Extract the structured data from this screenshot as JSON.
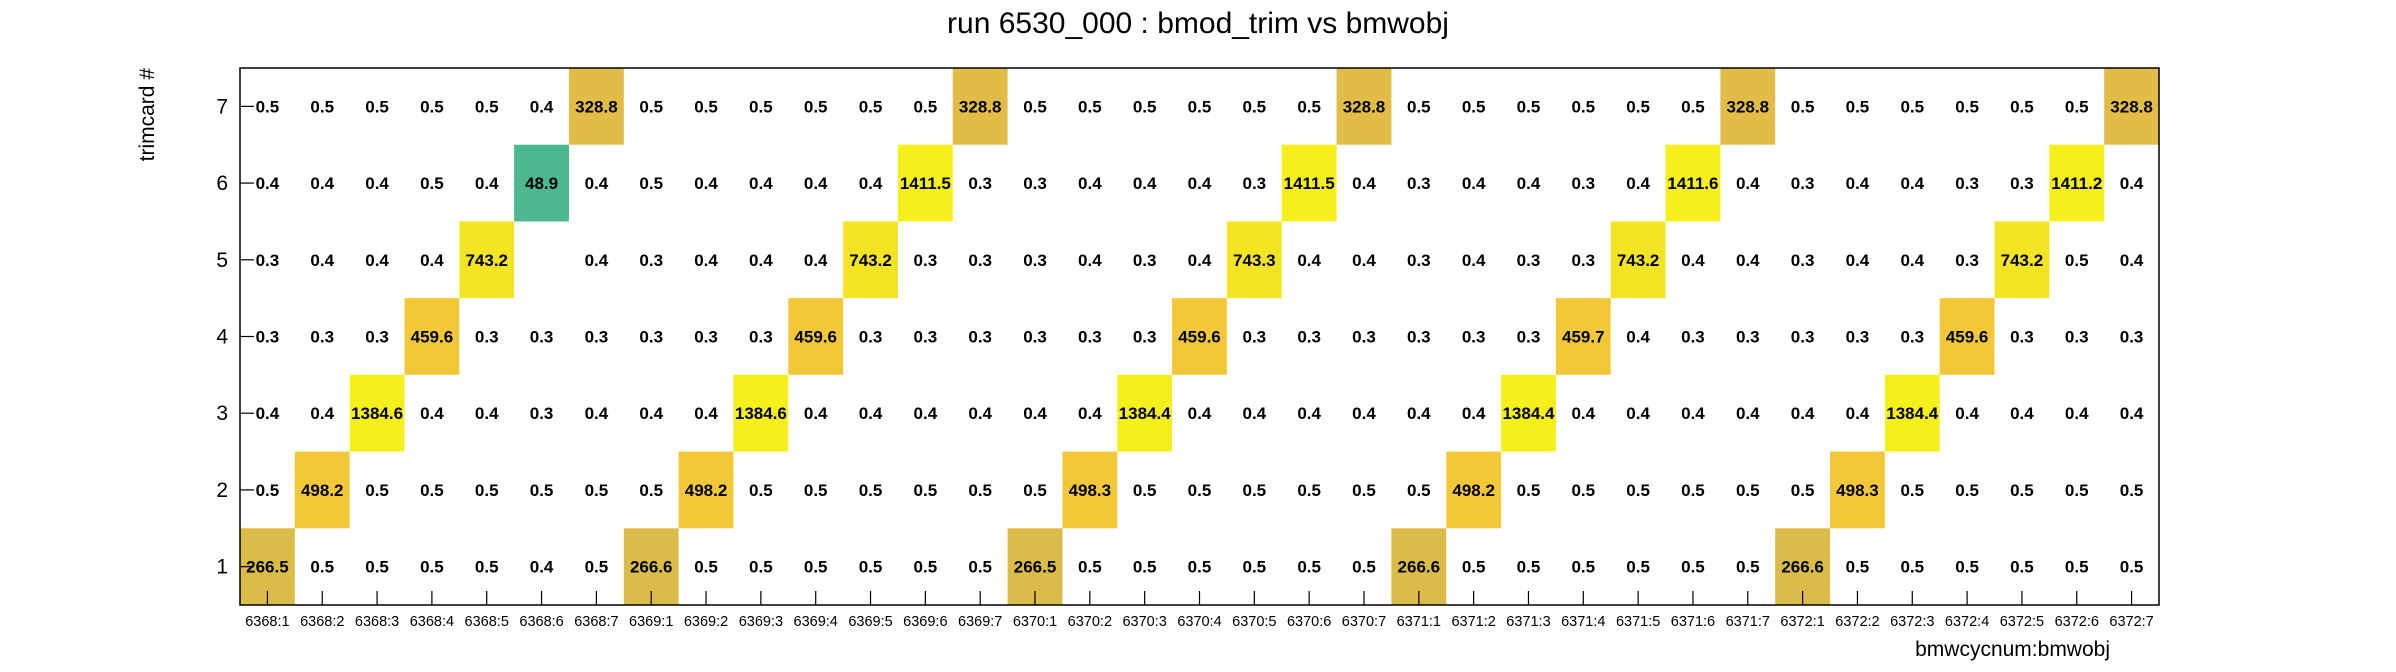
{
  "chart_data": {
    "type": "heatmap",
    "title": "run 6530_000 : bmod_trim vs bmwobj",
    "xlabel": "bmwcycnum:bmwobj",
    "ylabel": "trimcard #",
    "x_categories": [
      "6368:1",
      "6368:2",
      "6368:3",
      "6368:4",
      "6368:5",
      "6368:6",
      "6368:7",
      "6369:1",
      "6369:2",
      "6369:3",
      "6369:4",
      "6369:5",
      "6369:6",
      "6369:7",
      "6370:1",
      "6370:2",
      "6370:3",
      "6370:4",
      "6370:5",
      "6370:6",
      "6370:7",
      "6371:1",
      "6371:2",
      "6371:3",
      "6371:4",
      "6371:5",
      "6371:6",
      "6371:7",
      "6372:1",
      "6372:2",
      "6372:3",
      "6372:4",
      "6372:5",
      "6372:6",
      "6372:7"
    ],
    "y_categories": [
      "1",
      "2",
      "3",
      "4",
      "5",
      "6",
      "7"
    ],
    "values": [
      [
        266.5,
        0.5,
        0.5,
        0.5,
        0.5,
        0.4,
        0.5,
        266.6,
        0.5,
        0.5,
        0.5,
        0.5,
        0.5,
        0.5,
        266.5,
        0.5,
        0.5,
        0.5,
        0.5,
        0.5,
        0.5,
        266.6,
        0.5,
        0.5,
        0.5,
        0.5,
        0.5,
        0.5,
        266.6,
        0.5,
        0.5,
        0.5,
        0.5,
        0.5,
        0.5
      ],
      [
        0.5,
        498.2,
        0.5,
        0.5,
        0.5,
        0.5,
        0.5,
        0.5,
        498.2,
        0.5,
        0.5,
        0.5,
        0.5,
        0.5,
        0.5,
        498.3,
        0.5,
        0.5,
        0.5,
        0.5,
        0.5,
        0.5,
        498.2,
        0.5,
        0.5,
        0.5,
        0.5,
        0.5,
        0.5,
        498.3,
        0.5,
        0.5,
        0.5,
        0.5,
        0.5
      ],
      [
        0.4,
        0.4,
        1384.6,
        0.4,
        0.4,
        0.3,
        0.4,
        0.4,
        0.4,
        1384.6,
        0.4,
        0.4,
        0.4,
        0.4,
        0.4,
        0.4,
        1384.4,
        0.4,
        0.4,
        0.4,
        0.4,
        0.4,
        0.4,
        1384.4,
        0.4,
        0.4,
        0.4,
        0.4,
        0.4,
        0.4,
        1384.4,
        0.4,
        0.4,
        0.4,
        0.4
      ],
      [
        0.3,
        0.3,
        0.3,
        459.6,
        0.3,
        0.3,
        0.3,
        0.3,
        0.3,
        0.3,
        459.6,
        0.3,
        0.3,
        0.3,
        0.3,
        0.3,
        0.3,
        459.6,
        0.3,
        0.3,
        0.3,
        0.3,
        0.3,
        0.3,
        459.7,
        0.4,
        0.3,
        0.3,
        0.3,
        0.3,
        0.3,
        459.6,
        0.3,
        0.3,
        0.3
      ],
      [
        0.3,
        0.4,
        0.4,
        0.4,
        743.2,
        null,
        0.4,
        0.3,
        0.4,
        0.4,
        0.4,
        743.2,
        0.3,
        0.3,
        0.3,
        0.4,
        0.3,
        0.4,
        743.3,
        0.4,
        0.4,
        0.3,
        0.4,
        0.3,
        0.3,
        743.2,
        0.4,
        0.4,
        0.3,
        0.4,
        0.4,
        0.3,
        743.2,
        0.5,
        0.4
      ],
      [
        0.4,
        0.4,
        0.4,
        0.5,
        0.4,
        48.9,
        0.4,
        0.5,
        0.4,
        0.4,
        0.4,
        0.4,
        1411.5,
        0.3,
        0.3,
        0.4,
        0.4,
        0.4,
        0.3,
        1411.5,
        0.4,
        0.3,
        0.4,
        0.4,
        0.3,
        0.4,
        1411.6,
        0.4,
        0.3,
        0.4,
        0.4,
        0.3,
        0.3,
        1411.2,
        0.4
      ],
      [
        0.5,
        0.5,
        0.5,
        0.5,
        0.5,
        0.4,
        328.8,
        0.5,
        0.5,
        0.5,
        0.5,
        0.5,
        0.5,
        328.8,
        0.5,
        0.5,
        0.5,
        0.5,
        0.5,
        0.5,
        328.8,
        0.5,
        0.5,
        0.5,
        0.5,
        0.5,
        0.5,
        328.8,
        0.5,
        0.5,
        0.5,
        0.5,
        0.5,
        0.5,
        328.8
      ]
    ],
    "value_colors": [
      {
        "min": 1000,
        "color": "#f6ef1c"
      },
      {
        "min": 600,
        "color": "#f4e524"
      },
      {
        "min": 400,
        "color": "#f3c838"
      },
      {
        "min": 300,
        "color": "#e1bc47"
      },
      {
        "min": 200,
        "color": "#dcbc48"
      },
      {
        "min": 20,
        "color": "#4cb88e"
      }
    ],
    "grid": false,
    "legend": "none"
  }
}
